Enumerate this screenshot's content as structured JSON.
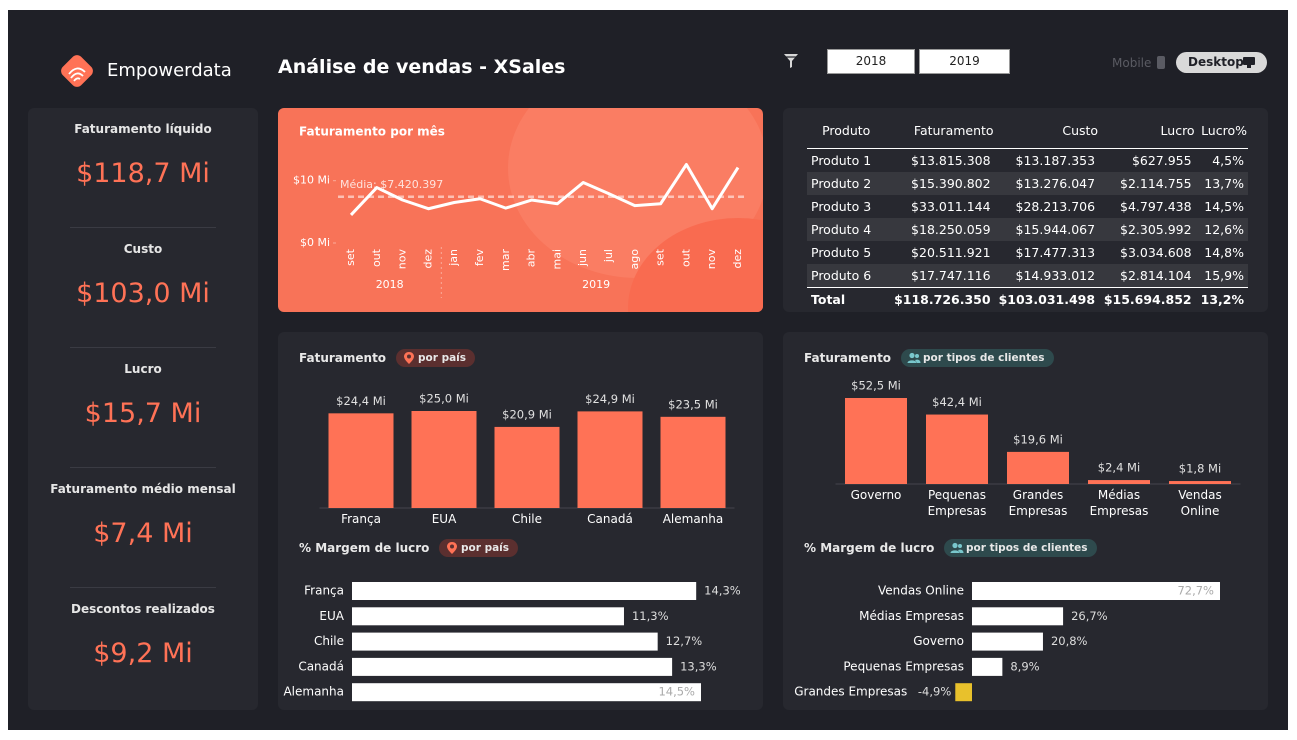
{
  "header": {
    "brand": "Empowerdata",
    "title": "Análise de vendas - XSales",
    "years": [
      "2018",
      "2019"
    ],
    "views": [
      "Mobile",
      "Desktop"
    ]
  },
  "kpis": [
    {
      "label": "Faturamento líquido",
      "value": "$118,7 Mi"
    },
    {
      "label": "Custo",
      "value": "$103,0 Mi"
    },
    {
      "label": "Lucro",
      "value": "$15,7 Mi"
    },
    {
      "label": "Faturamento médio mensal",
      "value": "$7,4 Mi"
    },
    {
      "label": "Descontos realizados",
      "value": "$9,2 Mi"
    }
  ],
  "table": {
    "columns": [
      "Produto",
      "Faturamento",
      "Custo",
      "Lucro",
      "Lucro%"
    ],
    "rows": [
      [
        "Produto 1",
        "$13.815.308",
        "$13.187.353",
        "$627.955",
        "4,5%"
      ],
      [
        "Produto 2",
        "$15.390.802",
        "$13.276.047",
        "$2.114.755",
        "13,7%"
      ],
      [
        "Produto 3",
        "$33.011.144",
        "$28.213.706",
        "$4.797.438",
        "14,5%"
      ],
      [
        "Produto 4",
        "$18.250.059",
        "$15.944.067",
        "$2.305.992",
        "12,6%"
      ],
      [
        "Produto 5",
        "$20.511.921",
        "$17.477.313",
        "$3.034.608",
        "14,8%"
      ],
      [
        "Produto 6",
        "$17.747.116",
        "$14.933.012",
        "$2.814.104",
        "15,9%"
      ]
    ],
    "total": [
      "Total",
      "$118.726.350",
      "$103.031.498",
      "$15.694.852",
      "13,2%"
    ]
  },
  "chart_data": [
    {
      "type": "line",
      "title": "Faturamento por mês",
      "categories": [
        "set",
        "out",
        "nov",
        "dez",
        "jan",
        "fev",
        "mar",
        "abr",
        "mai",
        "jun",
        "jul",
        "ago",
        "set",
        "out",
        "nov",
        "dez"
      ],
      "x_groups": [
        {
          "label": "2018",
          "count": 4
        },
        {
          "label": "2019",
          "count": 12
        }
      ],
      "values": [
        4500000,
        8900000,
        6900000,
        5500000,
        6500000,
        7100000,
        5600000,
        6900000,
        6300000,
        9700000,
        7900000,
        6000000,
        6300000,
        12600000,
        5500000,
        12100000
      ],
      "color": "#ffffff",
      "ylim": [
        0,
        13000000
      ],
      "yticks": [
        {
          "value": 0,
          "label": "$0 Mi"
        },
        {
          "value": 10000000,
          "label": "$10 Mi"
        }
      ],
      "average": 7420397,
      "average_label": "Média: $7.420.397"
    },
    {
      "type": "bar",
      "title": "Faturamento",
      "subtitle": "por país",
      "categories": [
        "França",
        "EUA",
        "Chile",
        "Canadá",
        "Alemanha"
      ],
      "values": [
        24.4,
        25.0,
        20.9,
        24.9,
        23.5
      ],
      "value_labels": [
        "$24,4 Mi",
        "$25,0 Mi",
        "$20,9 Mi",
        "$24,9 Mi",
        "$23,5 Mi"
      ],
      "color": "#ff7256"
    },
    {
      "type": "hbar",
      "title": "% Margem de lucro",
      "subtitle": "por país",
      "categories": [
        "França",
        "EUA",
        "Chile",
        "Canadá",
        "Alemanha"
      ],
      "values": [
        14.3,
        11.3,
        12.7,
        13.3,
        14.5
      ],
      "value_labels": [
        "14,3%",
        "11,3%",
        "12,7%",
        "13,3%",
        "14,5%"
      ],
      "color": "#ffffff"
    },
    {
      "type": "bar",
      "title": "Faturamento",
      "subtitle": "por tipos de clientes",
      "categories": [
        "Governo",
        "Pequenas Empresas",
        "Grandes Empresas",
        "Médias Empresas",
        "Vendas Online"
      ],
      "values": [
        52.5,
        42.4,
        19.6,
        2.4,
        1.8
      ],
      "value_labels": [
        "$52,5 Mi",
        "$42,4 Mi",
        "$19,6 Mi",
        "$2,4 Mi",
        "$1,8 Mi"
      ],
      "color": "#ff7256"
    },
    {
      "type": "hbar",
      "title": "% Margem de lucro",
      "subtitle": "por tipos de clientes",
      "categories": [
        "Vendas Online",
        "Médias Empresas",
        "Governo",
        "Pequenas Empresas",
        "Grandes Empresas"
      ],
      "values": [
        72.7,
        26.7,
        20.8,
        8.9,
        -4.9
      ],
      "value_labels": [
        "72,7%",
        "26,7%",
        "20,8%",
        "8,9%",
        "-4,9%"
      ],
      "color": "#ffffff",
      "negative_color": "#e8c12c"
    }
  ]
}
